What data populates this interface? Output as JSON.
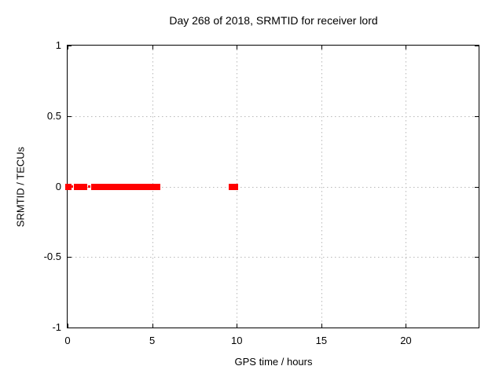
{
  "window": {
    "background": "#ffffff"
  },
  "chart_data": {
    "type": "scatter",
    "title": "Day 268 of 2018, SRMTID for receiver lord",
    "xlabel": "GPS time / hours",
    "ylabel": "SRMTID / TECUs",
    "xlim": [
      0,
      24.3
    ],
    "ylim": [
      -1,
      1
    ],
    "xticks": {
      "values": [
        0,
        5,
        10,
        15,
        20
      ],
      "labels": [
        "0",
        "5",
        "10",
        "15",
        "20"
      ]
    },
    "yticks": {
      "values": [
        1,
        0.5,
        0,
        -0.5,
        -1
      ],
      "labels": [
        "1",
        "0.5",
        "0",
        "-0.5",
        "-1"
      ]
    },
    "grid": true,
    "grid_style": "dotted",
    "legend": "none",
    "marker": "filled-square",
    "colors": {
      "series": "#ff0000",
      "grid": "#b8b8b8",
      "border": "#000000",
      "text": "#000000"
    },
    "series": [
      {
        "name": "SRMTID",
        "y_constant": 0,
        "x_segments": [
          {
            "x_start": 0.0,
            "x_end": 0.05,
            "weight": "point"
          },
          {
            "x_start": 0.18,
            "x_end": 0.32,
            "weight": "thin"
          },
          {
            "x_start": 0.55,
            "x_end": 0.62,
            "weight": "point"
          },
          {
            "x_start": 0.93,
            "x_end": 1.02,
            "weight": "point"
          },
          {
            "x_start": 1.21,
            "x_end": 1.33,
            "weight": "thin"
          },
          {
            "x_start": 1.55,
            "x_end": 5.3,
            "weight": "point"
          },
          {
            "x_start": 5.3,
            "x_end": 5.45,
            "weight": "thin"
          },
          {
            "x_start": 9.7,
            "x_end": 9.9,
            "weight": "point"
          }
        ]
      }
    ]
  }
}
